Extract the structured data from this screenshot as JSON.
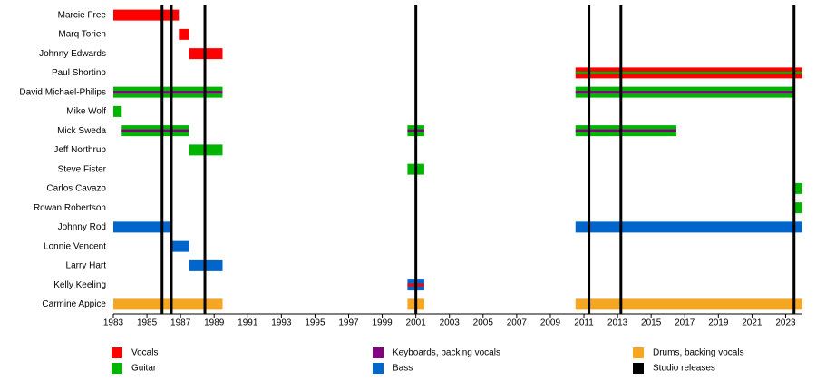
{
  "chart_data": {
    "type": "timeline",
    "categories": [
      "Marcie Free",
      "Marq Torien",
      "Johnny Edwards",
      "Paul Shortino",
      "David Michael-Philips",
      "Mike Wolf",
      "Mick Sweda",
      "Jeff Northrup",
      "Steve Fister",
      "Carlos Cavazo",
      "Rowan Robertson",
      "Johnny Rod",
      "Lonnie Vencent",
      "Larry Hart",
      "Kelly Keeling",
      "Carmine Appice"
    ],
    "xlim": [
      1983,
      2024
    ],
    "xticks": [
      1983,
      1985,
      1987,
      1989,
      1991,
      1993,
      1995,
      1997,
      1999,
      2001,
      2003,
      2005,
      2007,
      2009,
      2011,
      2013,
      2015,
      2017,
      2019,
      2021,
      2023
    ],
    "series": [
      {
        "name": "Vocals",
        "color": "#ff0000",
        "values": [
          [
            [
              1983,
              1986.9
            ]
          ],
          [
            [
              1986.9,
              1987.5
            ]
          ],
          [
            [
              1987.5,
              1989.5
            ]
          ],
          [
            [
              2010.5,
              2024
            ]
          ],
          null,
          null,
          null,
          null,
          null,
          null,
          null,
          null,
          null,
          null,
          null,
          null
        ],
        "stripes": [
          null,
          null,
          null,
          null,
          null,
          null,
          null,
          null,
          null,
          null,
          null,
          null,
          null,
          null,
          [
            [
              2000.5,
              2001.5
            ]
          ],
          null
        ]
      },
      {
        "name": "Guitar",
        "color": "#00b400",
        "values": [
          null,
          null,
          null,
          null,
          [
            [
              1983,
              1989.5
            ],
            [
              2010.5,
              2023.5
            ]
          ],
          [
            [
              1983,
              1983.5
            ]
          ],
          [
            [
              1983.5,
              1987.5
            ],
            [
              2000.5,
              2001.5
            ],
            [
              2010.5,
              2016.5
            ]
          ],
          [
            [
              1987.5,
              1989.5
            ]
          ],
          [
            [
              2000.5,
              2001.5
            ]
          ],
          [
            [
              2023.5,
              2024
            ]
          ],
          [
            [
              2023.5,
              2024
            ]
          ],
          null,
          null,
          null,
          null,
          null
        ],
        "stripes": [
          null,
          null,
          null,
          [
            [
              2010.5,
              2024
            ]
          ],
          null,
          null,
          null,
          null,
          null,
          null,
          null,
          null,
          null,
          null,
          null,
          null
        ]
      },
      {
        "name": "Keyboards, backing vocals",
        "color": "#800080",
        "stripes": [
          null,
          null,
          null,
          null,
          [
            [
              1983,
              1989.5
            ],
            [
              2010.5,
              2023.5
            ]
          ],
          null,
          [
            [
              1983.5,
              1987.5
            ],
            [
              2000.5,
              2001.5
            ],
            [
              2010.5,
              2016.5
            ]
          ],
          null,
          null,
          null,
          null,
          null,
          null,
          null,
          null,
          null
        ]
      },
      {
        "name": "Bass",
        "color": "#0066cc",
        "values": [
          null,
          null,
          null,
          null,
          null,
          null,
          null,
          null,
          null,
          null,
          null,
          [
            [
              1983,
              1986.45
            ],
            [
              2010.5,
              2024
            ]
          ],
          [
            [
              1986.45,
              1987.5
            ]
          ],
          [
            [
              1987.5,
              1989.5
            ]
          ],
          [
            [
              2000.5,
              2001.5
            ]
          ],
          null
        ]
      },
      {
        "name": "Drums, backing vocals",
        "color": "#f5a623",
        "values": [
          null,
          null,
          null,
          null,
          null,
          null,
          null,
          null,
          null,
          null,
          null,
          null,
          null,
          null,
          null,
          [
            [
              1983,
              1989.5
            ],
            [
              2000.5,
              2001.5
            ],
            [
              2010.5,
              2024
            ]
          ]
        ]
      }
    ],
    "releases": {
      "name": "Studio releases",
      "color": "#000000",
      "values": [
        1985.9,
        1986.45,
        1988.45,
        2001,
        2011.3,
        2013.2,
        2023.5
      ]
    }
  }
}
